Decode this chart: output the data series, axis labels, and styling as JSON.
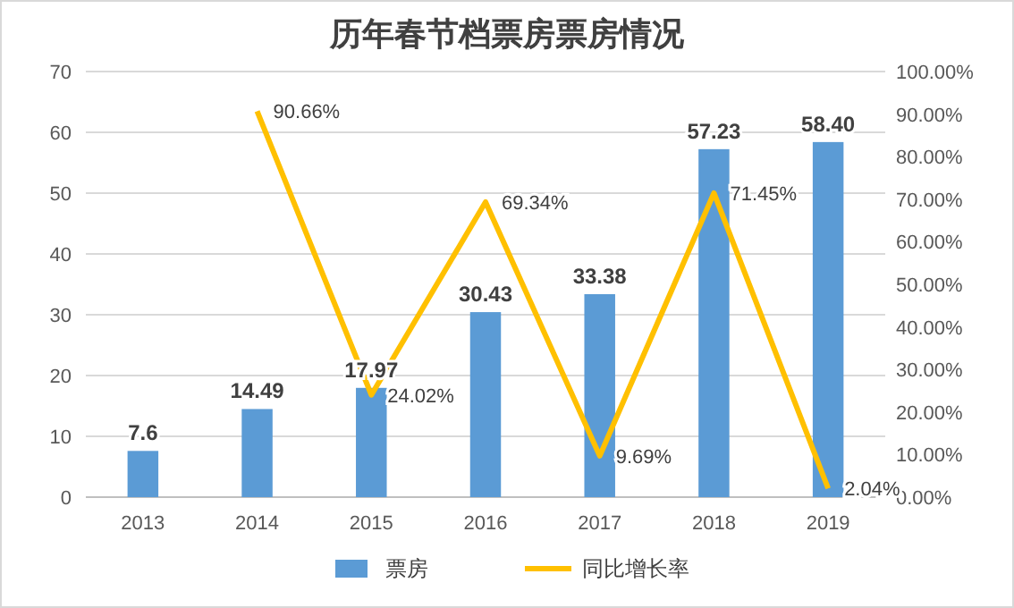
{
  "chart_data": {
    "type": "bar",
    "title": "历年春节档票房票房情况",
    "categories": [
      "2013",
      "2014",
      "2015",
      "2016",
      "2017",
      "2018",
      "2019"
    ],
    "series": [
      {
        "name": "票房",
        "color": "#5b9bd5",
        "values": [
          7.6,
          14.49,
          17.97,
          30.43,
          33.38,
          57.23,
          58.4
        ],
        "value_labels": [
          "7.6",
          "14.49",
          "17.97",
          "30.43",
          "33.38",
          "57.23",
          "58.40"
        ]
      },
      {
        "name": "同比增长率",
        "type": "line",
        "axis": "y2",
        "color": "#ffc000",
        "values": [
          null,
          90.66,
          24.02,
          69.34,
          9.69,
          71.45,
          2.04
        ],
        "value_labels": [
          null,
          "90.66%",
          "24.02%",
          "69.34%",
          "9.69%",
          "71.45%",
          "2.04%"
        ]
      }
    ],
    "ylim": [
      0,
      70
    ],
    "yticks": [
      0,
      10,
      20,
      30,
      40,
      50,
      60,
      70
    ],
    "y2lim": [
      0,
      100
    ],
    "y2ticks": [
      {
        "value": 0,
        "label": "0.00%"
      },
      {
        "value": 10,
        "label": "10.00%"
      },
      {
        "value": 20,
        "label": "20.00%"
      },
      {
        "value": 30,
        "label": "30.00%"
      },
      {
        "value": 40,
        "label": "40.00%"
      },
      {
        "value": 50,
        "label": "50.00%"
      },
      {
        "value": 60,
        "label": "60.00%"
      },
      {
        "value": 70,
        "label": "70.00%"
      },
      {
        "value": 80,
        "label": "80.00%"
      },
      {
        "value": 90,
        "label": "90.00%"
      },
      {
        "value": 100,
        "label": "100.00%"
      }
    ],
    "grid": "y",
    "legend": "bottom"
  }
}
